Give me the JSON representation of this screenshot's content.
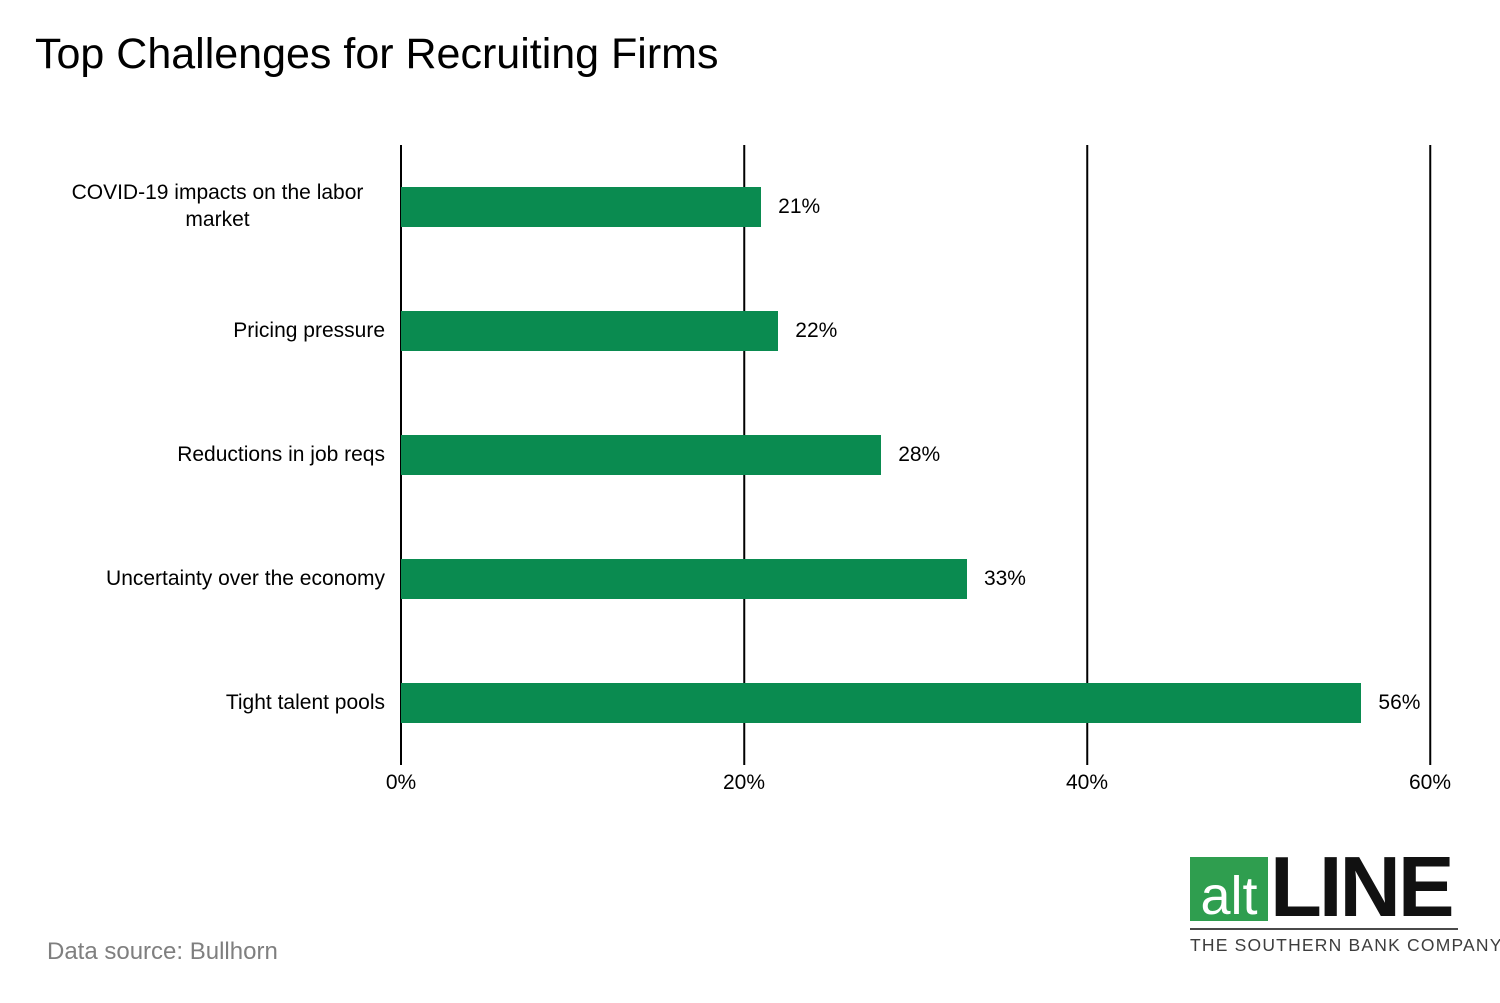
{
  "page": {
    "title": "Top Challenges for Recruiting Firms",
    "source_note": "Data source: Bullhorn"
  },
  "logo": {
    "alt_text": "alt",
    "line_text": "LINE",
    "tagline": "THE SOUTHERN BANK COMPANY"
  },
  "colors": {
    "bar_green": "#0a8b50",
    "logo_green": "#2f9e4f",
    "source_text": "#7f7f7f",
    "tagline_text": "#3d3d3d",
    "gridline": "#000000"
  },
  "chart_data": {
    "type": "bar",
    "orientation": "horizontal",
    "title": "Top Challenges for Recruiting Firms",
    "categories": [
      "COVID-19 impacts on the labor market",
      "Pricing pressure",
      "Reductions in job reqs",
      "Uncertainty over the economy",
      "Tight talent pools"
    ],
    "values": [
      21,
      22,
      28,
      33,
      56
    ],
    "value_labels": [
      "21%",
      "22%",
      "28%",
      "33%",
      "56%"
    ],
    "x_ticks": [
      "0%",
      "20%",
      "40%",
      "60%"
    ],
    "x_tick_values": [
      0,
      20,
      40,
      60
    ],
    "xlim": [
      0,
      60
    ],
    "xlabel": "",
    "ylabel": "",
    "grid": true,
    "legend": false,
    "bar_color": "#0a8b50",
    "source": "Bullhorn"
  }
}
